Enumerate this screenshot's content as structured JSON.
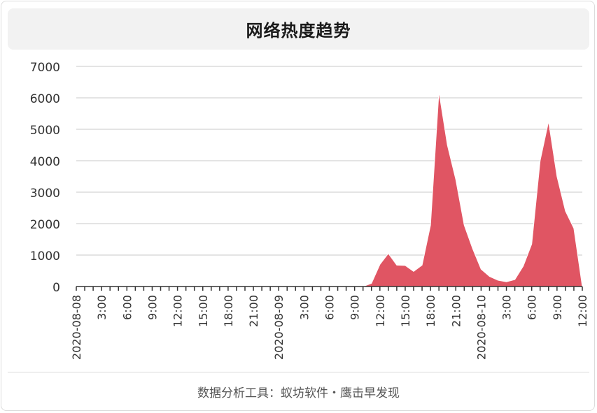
{
  "title": "网络热度趋势",
  "footer": "数据分析工具：蚁坊软件・鹰击早发现",
  "colors": {
    "area": "#e05563",
    "grid": "#c8c8c8",
    "axis": "#333333"
  },
  "chart_data": {
    "type": "area",
    "title": "网络热度趋势",
    "xlabel": "",
    "ylabel": "",
    "ylim": [
      0,
      7000
    ],
    "yticks": [
      0,
      1000,
      2000,
      3000,
      4000,
      5000,
      6000,
      7000
    ],
    "x_unit": "hour",
    "x_start": "2020-08-08 00:00",
    "x_end": "2020-08-10 12:00",
    "xtick_labels": [
      "2020-08-08",
      "3:00",
      "6:00",
      "9:00",
      "12:00",
      "15:00",
      "18:00",
      "21:00",
      "2020-08-09",
      "3:00",
      "6:00",
      "9:00",
      "12:00",
      "15:00",
      "18:00",
      "21:00",
      "2020-08-10",
      "3:00",
      "6:00",
      "9:00",
      "12:00"
    ],
    "grid": true,
    "legend": "none",
    "series": [
      {
        "values": [
          0,
          0,
          0,
          0,
          0,
          0,
          0,
          0,
          0,
          0,
          0,
          0,
          0,
          0,
          0,
          0,
          0,
          0,
          0,
          0,
          0,
          0,
          0,
          0,
          0,
          0,
          0,
          0,
          0,
          0,
          0,
          0,
          0,
          0,
          0,
          100,
          700,
          1050,
          680,
          670,
          480,
          680,
          1950,
          6200,
          4500,
          3400,
          1950,
          1200,
          550,
          320,
          200,
          150,
          220,
          650,
          1350,
          4000,
          5250,
          3500,
          2400,
          1850,
          0
        ]
      }
    ]
  }
}
